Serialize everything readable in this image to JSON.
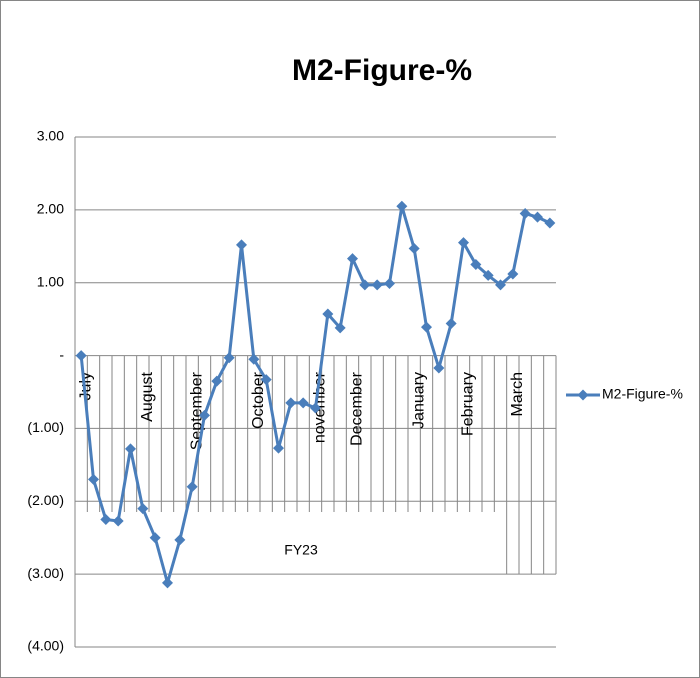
{
  "chart_data": {
    "type": "line",
    "title": "M2-Figure-%",
    "group": "FY23",
    "categories": [
      "July",
      null,
      null,
      null,
      null,
      "August",
      null,
      null,
      null,
      "September",
      null,
      null,
      null,
      null,
      "October",
      null,
      null,
      null,
      null,
      "november",
      null,
      null,
      "December",
      null,
      null,
      null,
      null,
      "January",
      null,
      null,
      null,
      "February",
      null,
      null,
      null,
      "March",
      null,
      null,
      null
    ],
    "series": [
      {
        "name": "M2-Figure-%",
        "color": "#4a7ebb",
        "values": [
          0.0,
          -1.7,
          -2.25,
          -2.27,
          -1.28,
          -2.1,
          -2.5,
          -3.12,
          -2.53,
          -1.8,
          -0.82,
          -0.35,
          -0.03,
          1.52,
          -0.05,
          -0.33,
          -1.27,
          -0.65,
          -0.65,
          -0.72,
          0.57,
          0.38,
          1.33,
          0.97,
          0.97,
          0.99,
          2.05,
          1.47,
          0.39,
          -0.17,
          0.44,
          1.55,
          1.25,
          1.1,
          0.97,
          1.12,
          1.95,
          1.9,
          1.82
        ]
      }
    ],
    "ylim": [
      -4,
      3
    ],
    "yticks": [
      {
        "value": -4,
        "label": "(4.00)"
      },
      {
        "value": -3,
        "label": "(3.00)"
      },
      {
        "value": -2,
        "label": "(2.00)"
      },
      {
        "value": -1,
        "label": "(1.00)"
      },
      {
        "value": 0,
        "label": "-"
      },
      {
        "value": 1,
        "label": "1.00"
      },
      {
        "value": 2,
        "label": "2.00"
      },
      {
        "value": 3,
        "label": "3.00"
      }
    ],
    "grid": true,
    "legend": "right"
  }
}
